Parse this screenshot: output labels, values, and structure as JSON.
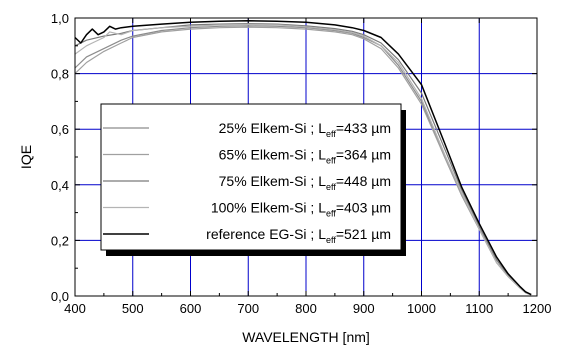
{
  "chart_data": {
    "type": "line",
    "xlabel": "WAVELENGTH [nm]",
    "ylabel": "IQE",
    "xlim": [
      400,
      1200
    ],
    "ylim": [
      0.0,
      1.0
    ],
    "x_ticks": [
      400,
      500,
      600,
      700,
      800,
      900,
      1000,
      1100,
      1200
    ],
    "y_ticks": [
      0.0,
      0.2,
      0.4,
      0.6,
      0.8,
      1.0
    ],
    "x_tick_labels": [
      "400",
      "500",
      "600",
      "700",
      "800",
      "900",
      "1000",
      "1100",
      "1200"
    ],
    "y_tick_labels": [
      "0,0",
      "0,2",
      "0,4",
      "0,6",
      "0,8",
      "1,0"
    ],
    "grid": true,
    "grid_color": "#0000cc",
    "legend_position": "center-left",
    "series": [
      {
        "name": "25% Elkem-Si",
        "legend": {
          "prefix": "25% Elkem-Si ; L",
          "sub": "eff",
          "suffix": "=433 µm"
        },
        "color": "#8c8c8c",
        "width": 1.2,
        "points": [
          [
            400,
            0.82
          ],
          [
            420,
            0.86
          ],
          [
            450,
            0.89
          ],
          [
            480,
            0.92
          ],
          [
            500,
            0.935
          ],
          [
            550,
            0.955
          ],
          [
            600,
            0.965
          ],
          [
            650,
            0.97
          ],
          [
            700,
            0.972
          ],
          [
            750,
            0.97
          ],
          [
            800,
            0.965
          ],
          [
            850,
            0.955
          ],
          [
            880,
            0.945
          ],
          [
            900,
            0.93
          ],
          [
            930,
            0.9
          ],
          [
            960,
            0.83
          ],
          [
            1000,
            0.7
          ],
          [
            1040,
            0.5
          ],
          [
            1070,
            0.36
          ],
          [
            1100,
            0.24
          ],
          [
            1130,
            0.12
          ],
          [
            1150,
            0.07
          ],
          [
            1170,
            0.03
          ],
          [
            1180,
            0.012
          ],
          [
            1190,
            0.004
          ]
        ]
      },
      {
        "name": "65% Elkem-Si",
        "legend": {
          "prefix": "65% Elkem-Si ; L",
          "sub": "eff",
          "suffix": "=364 µm"
        },
        "color": "#a0a0a0",
        "width": 1.2,
        "points": [
          [
            400,
            0.8
          ],
          [
            420,
            0.84
          ],
          [
            450,
            0.88
          ],
          [
            480,
            0.91
          ],
          [
            500,
            0.93
          ],
          [
            550,
            0.95
          ],
          [
            600,
            0.96
          ],
          [
            650,
            0.965
          ],
          [
            700,
            0.967
          ],
          [
            750,
            0.965
          ],
          [
            800,
            0.96
          ],
          [
            850,
            0.95
          ],
          [
            880,
            0.94
          ],
          [
            900,
            0.925
          ],
          [
            930,
            0.89
          ],
          [
            960,
            0.82
          ],
          [
            1000,
            0.69
          ],
          [
            1040,
            0.5
          ],
          [
            1070,
            0.36
          ],
          [
            1100,
            0.24
          ],
          [
            1130,
            0.12
          ],
          [
            1150,
            0.07
          ],
          [
            1170,
            0.03
          ],
          [
            1180,
            0.012
          ],
          [
            1190,
            0.004
          ]
        ]
      },
      {
        "name": "75% Elkem-Si",
        "legend": {
          "prefix": "75% Elkem-Si ; L",
          "sub": "eff",
          "suffix": "=448 µm"
        },
        "color": "#7a7a7a",
        "width": 1.2,
        "points": [
          [
            400,
            0.9
          ],
          [
            420,
            0.92
          ],
          [
            450,
            0.935
          ],
          [
            480,
            0.945
          ],
          [
            500,
            0.955
          ],
          [
            550,
            0.965
          ],
          [
            600,
            0.975
          ],
          [
            650,
            0.978
          ],
          [
            700,
            0.98
          ],
          [
            750,
            0.978
          ],
          [
            800,
            0.972
          ],
          [
            850,
            0.962
          ],
          [
            880,
            0.952
          ],
          [
            900,
            0.94
          ],
          [
            930,
            0.91
          ],
          [
            960,
            0.85
          ],
          [
            1000,
            0.73
          ],
          [
            1040,
            0.53
          ],
          [
            1070,
            0.38
          ],
          [
            1100,
            0.25
          ],
          [
            1130,
            0.13
          ],
          [
            1150,
            0.075
          ],
          [
            1170,
            0.033
          ],
          [
            1180,
            0.014
          ],
          [
            1190,
            0.005
          ]
        ]
      },
      {
        "name": "100% Elkem-Si",
        "legend": {
          "prefix": "100% Elkem-Si ; L",
          "sub": "eff",
          "suffix": "=403 µm"
        },
        "color": "#b4b4b4",
        "width": 1.2,
        "points": [
          [
            400,
            0.87
          ],
          [
            420,
            0.9
          ],
          [
            430,
            0.91
          ],
          [
            450,
            0.93
          ],
          [
            460,
            0.95
          ],
          [
            480,
            0.94
          ],
          [
            500,
            0.955
          ],
          [
            550,
            0.965
          ],
          [
            600,
            0.97
          ],
          [
            650,
            0.975
          ],
          [
            700,
            0.977
          ],
          [
            750,
            0.975
          ],
          [
            800,
            0.968
          ],
          [
            850,
            0.958
          ],
          [
            880,
            0.948
          ],
          [
            900,
            0.935
          ],
          [
            930,
            0.9
          ],
          [
            960,
            0.84
          ],
          [
            1000,
            0.71
          ],
          [
            1040,
            0.51
          ],
          [
            1070,
            0.37
          ],
          [
            1100,
            0.24
          ],
          [
            1130,
            0.12
          ],
          [
            1150,
            0.07
          ],
          [
            1170,
            0.03
          ],
          [
            1180,
            0.012
          ],
          [
            1190,
            0.004
          ]
        ]
      },
      {
        "name": "reference EG-Si",
        "legend": {
          "prefix": "reference EG-Si ; L",
          "sub": "eff",
          "suffix": "=521 µm"
        },
        "color": "#000000",
        "width": 1.5,
        "points": [
          [
            400,
            0.93
          ],
          [
            410,
            0.91
          ],
          [
            420,
            0.94
          ],
          [
            430,
            0.96
          ],
          [
            440,
            0.94
          ],
          [
            450,
            0.95
          ],
          [
            460,
            0.97
          ],
          [
            470,
            0.96
          ],
          [
            480,
            0.965
          ],
          [
            500,
            0.97
          ],
          [
            550,
            0.978
          ],
          [
            600,
            0.985
          ],
          [
            650,
            0.988
          ],
          [
            700,
            0.99
          ],
          [
            750,
            0.988
          ],
          [
            800,
            0.985
          ],
          [
            850,
            0.975
          ],
          [
            880,
            0.965
          ],
          [
            900,
            0.955
          ],
          [
            930,
            0.93
          ],
          [
            960,
            0.87
          ],
          [
            1000,
            0.76
          ],
          [
            1040,
            0.55
          ],
          [
            1070,
            0.39
          ],
          [
            1100,
            0.26
          ],
          [
            1130,
            0.14
          ],
          [
            1150,
            0.08
          ],
          [
            1170,
            0.035
          ],
          [
            1180,
            0.015
          ],
          [
            1190,
            0.005
          ]
        ]
      }
    ]
  }
}
